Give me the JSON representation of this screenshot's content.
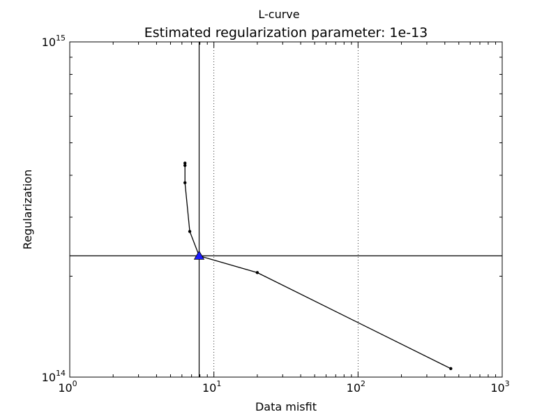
{
  "chart_data": {
    "type": "line",
    "suptitle": "L-curve",
    "title": "Estimated regularization parameter: 1e-13",
    "xlabel": "Data misfit",
    "ylabel": "Regularization",
    "xscale": "log",
    "yscale": "log",
    "xlim": [
      1,
      1000
    ],
    "ylim": [
      100000000000000.0,
      1000000000000000.0
    ],
    "x_ticks": [
      {
        "base": "10",
        "exp": "0"
      },
      {
        "base": "10",
        "exp": "1"
      },
      {
        "base": "10",
        "exp": "2"
      },
      {
        "base": "10",
        "exp": "3"
      }
    ],
    "y_ticks": [
      {
        "base": "10",
        "exp": "14"
      },
      {
        "base": "10",
        "exp": "15"
      }
    ],
    "x_gridlines": [
      10,
      100
    ],
    "series": [
      {
        "color": "#000000",
        "points": [
          {
            "x": 6.3,
            "y": 435000000000000.0
          },
          {
            "x": 6.3,
            "y": 428000000000000.0
          },
          {
            "x": 6.3,
            "y": 380000000000000.0
          },
          {
            "x": 6.8,
            "y": 272000000000000.0
          },
          {
            "x": 7.9,
            "y": 230000000000000.0
          },
          {
            "x": 20,
            "y": 205000000000000.0
          },
          {
            "x": 440,
            "y": 106000000000000.0
          }
        ]
      }
    ],
    "selected_point": {
      "x": 7.9,
      "y": 230000000000000.0,
      "marker": "triangle",
      "color": "#1a1aff"
    },
    "crosshair": {
      "x": 7.9,
      "y": 230000000000000.0
    }
  }
}
